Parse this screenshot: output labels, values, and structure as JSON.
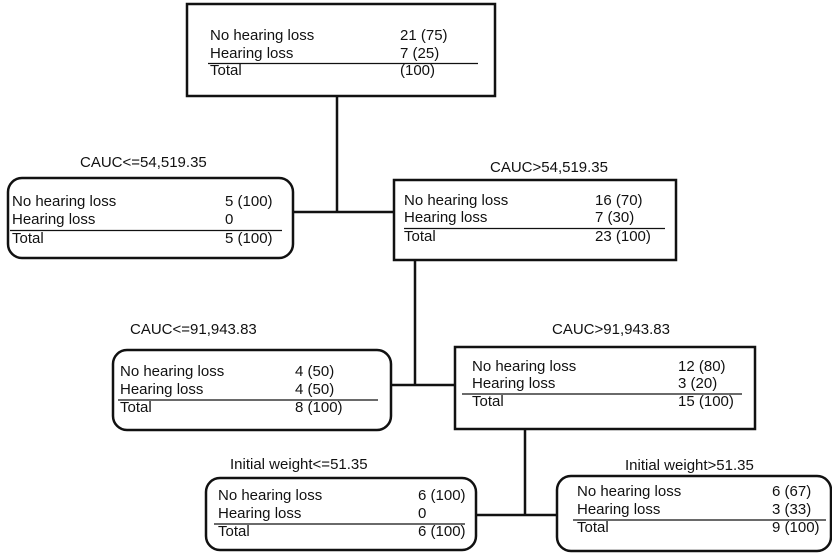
{
  "nodes": [
    {
      "rows": [
        {
          "label": "No hearing loss",
          "value": "21 (75)"
        },
        {
          "label": "Hearing loss",
          "value": "7 (25)"
        },
        {
          "label": "Total",
          "value": "(100)"
        }
      ]
    },
    {
      "label": "CAUC<=54,519.35",
      "rows": [
        {
          "label": "No hearing loss",
          "value": "5 (100)"
        },
        {
          "label": "Hearing loss",
          "value": "0"
        },
        {
          "label": "Total",
          "value": "5 (100)"
        }
      ]
    },
    {
      "label": "CAUC>54,519.35",
      "rows": [
        {
          "label": "No hearing loss",
          "value": "16 (70)"
        },
        {
          "label": "Hearing loss",
          "value": "7 (30)"
        },
        {
          "label": "Total",
          "value": "23 (100)"
        }
      ]
    },
    {
      "label": "CAUC<=91,943.83",
      "rows": [
        {
          "label": "No hearing loss",
          "value": "4 (50)"
        },
        {
          "label": "Hearing loss",
          "value": "4 (50)"
        },
        {
          "label": "Total",
          "value": "8 (100)"
        }
      ]
    },
    {
      "label": "CAUC>91,943.83",
      "rows": [
        {
          "label": "No hearing loss",
          "value": "12 (80)"
        },
        {
          "label": "Hearing loss",
          "value": "3 (20)"
        },
        {
          "label": "Total",
          "value": "15 (100)"
        }
      ]
    },
    {
      "label": "Initial weight<=51.35",
      "rows": [
        {
          "label": "No hearing loss",
          "value": "6 (100)"
        },
        {
          "label": "Hearing loss",
          "value": "0"
        },
        {
          "label": "Total",
          "value": "6 (100)"
        }
      ]
    },
    {
      "label": "Initial weight>51.35",
      "rows": [
        {
          "label": "No hearing loss",
          "value": "6 (67)"
        },
        {
          "label": "Hearing loss",
          "value": "3 (33)"
        },
        {
          "label": "Total",
          "value": "9 (100)"
        }
      ]
    }
  ]
}
